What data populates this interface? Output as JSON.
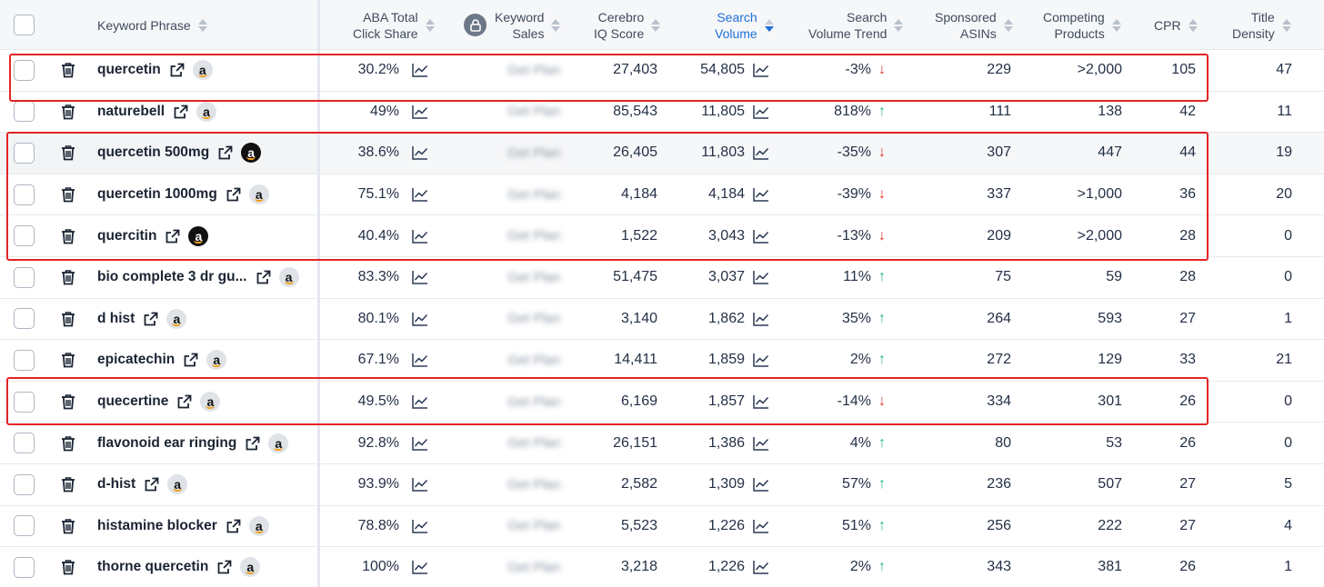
{
  "columns": {
    "keyword_phrase": "Keyword Phrase",
    "aba_line1": "ABA Total",
    "aba_line2": "Click Share",
    "sales_line1": "Keyword",
    "sales_line2": "Sales",
    "cerebro_line1": "Cerebro",
    "cerebro_line2": "IQ Score",
    "sv_line1": "Search",
    "sv_line2": "Volume",
    "svt_line1": "Search",
    "svt_line2": "Volume Trend",
    "sponsored_line1": "Sponsored",
    "sponsored_line2": "ASINs",
    "competing_line1": "Competing",
    "competing_line2": "Products",
    "cpr": "CPR",
    "td_line1": "Title",
    "td_line2": "Density"
  },
  "colors": {
    "highlight": "#e32424",
    "trend_down": "#e0322b",
    "trend_up": "#23b574",
    "active_sort": "#1f6fd6"
  },
  "rows": [
    {
      "keyword": "quercetin",
      "amazon_dark": false,
      "aba": "30.2%",
      "sales": "Get Plan",
      "cerebro": "27,403",
      "sv": "54,805",
      "trend": "-3%",
      "dir": "down",
      "sponsored": "229",
      "competing": ">2,000",
      "cpr": "105",
      "td": "47"
    },
    {
      "keyword": "naturebell",
      "amazon_dark": false,
      "aba": "49%",
      "sales": "Get Plan",
      "cerebro": "85,543",
      "sv": "11,805",
      "trend": "818%",
      "dir": "up",
      "sponsored": "111",
      "competing": "138",
      "cpr": "42",
      "td": "11"
    },
    {
      "keyword": "quercetin 500mg",
      "amazon_dark": true,
      "aba": "38.6%",
      "sales": "Get Plan",
      "cerebro": "26,405",
      "sv": "11,803",
      "trend": "-35%",
      "dir": "down",
      "sponsored": "307",
      "competing": "447",
      "cpr": "44",
      "td": "19"
    },
    {
      "keyword": "quercetin 1000mg",
      "amazon_dark": false,
      "aba": "75.1%",
      "sales": "Get Plan",
      "cerebro": "4,184",
      "sv": "4,184",
      "trend": "-39%",
      "dir": "down",
      "sponsored": "337",
      "competing": ">1,000",
      "cpr": "36",
      "td": "20"
    },
    {
      "keyword": "quercitin",
      "amazon_dark": true,
      "aba": "40.4%",
      "sales": "Get Plan",
      "cerebro": "1,522",
      "sv": "3,043",
      "trend": "-13%",
      "dir": "down",
      "sponsored": "209",
      "competing": ">2,000",
      "cpr": "28",
      "td": "0"
    },
    {
      "keyword": "bio complete 3 dr gu...",
      "amazon_dark": false,
      "aba": "83.3%",
      "sales": "Get Plan",
      "cerebro": "51,475",
      "sv": "3,037",
      "trend": "11%",
      "dir": "up",
      "sponsored": "75",
      "competing": "59",
      "cpr": "28",
      "td": "0"
    },
    {
      "keyword": "d hist",
      "amazon_dark": false,
      "aba": "80.1%",
      "sales": "Get Plan",
      "cerebro": "3,140",
      "sv": "1,862",
      "trend": "35%",
      "dir": "up",
      "sponsored": "264",
      "competing": "593",
      "cpr": "27",
      "td": "1"
    },
    {
      "keyword": "epicatechin",
      "amazon_dark": false,
      "aba": "67.1%",
      "sales": "Get Plan",
      "cerebro": "14,411",
      "sv": "1,859",
      "trend": "2%",
      "dir": "up",
      "sponsored": "272",
      "competing": "129",
      "cpr": "33",
      "td": "21"
    },
    {
      "keyword": "quecertine",
      "amazon_dark": false,
      "aba": "49.5%",
      "sales": "Get Plan",
      "cerebro": "6,169",
      "sv": "1,857",
      "trend": "-14%",
      "dir": "down",
      "sponsored": "334",
      "competing": "301",
      "cpr": "26",
      "td": "0"
    },
    {
      "keyword": "flavonoid ear ringing",
      "amazon_dark": false,
      "aba": "92.8%",
      "sales": "Get Plan",
      "cerebro": "26,151",
      "sv": "1,386",
      "trend": "4%",
      "dir": "up",
      "sponsored": "80",
      "competing": "53",
      "cpr": "26",
      "td": "0"
    },
    {
      "keyword": "d-hist",
      "amazon_dark": false,
      "aba": "93.9%",
      "sales": "Get Plan",
      "cerebro": "2,582",
      "sv": "1,309",
      "trend": "57%",
      "dir": "up",
      "sponsored": "236",
      "competing": "507",
      "cpr": "27",
      "td": "5"
    },
    {
      "keyword": "histamine blocker",
      "amazon_dark": false,
      "aba": "78.8%",
      "sales": "Get Plan",
      "cerebro": "5,523",
      "sv": "1,226",
      "trend": "51%",
      "dir": "up",
      "sponsored": "256",
      "competing": "222",
      "cpr": "27",
      "td": "4"
    },
    {
      "keyword": "thorne quercetin",
      "amazon_dark": false,
      "aba": "100%",
      "sales": "Get Plan",
      "cerebro": "3,218",
      "sv": "1,226",
      "trend": "2%",
      "dir": "up",
      "sponsored": "343",
      "competing": "381",
      "cpr": "26",
      "td": "1"
    }
  ]
}
